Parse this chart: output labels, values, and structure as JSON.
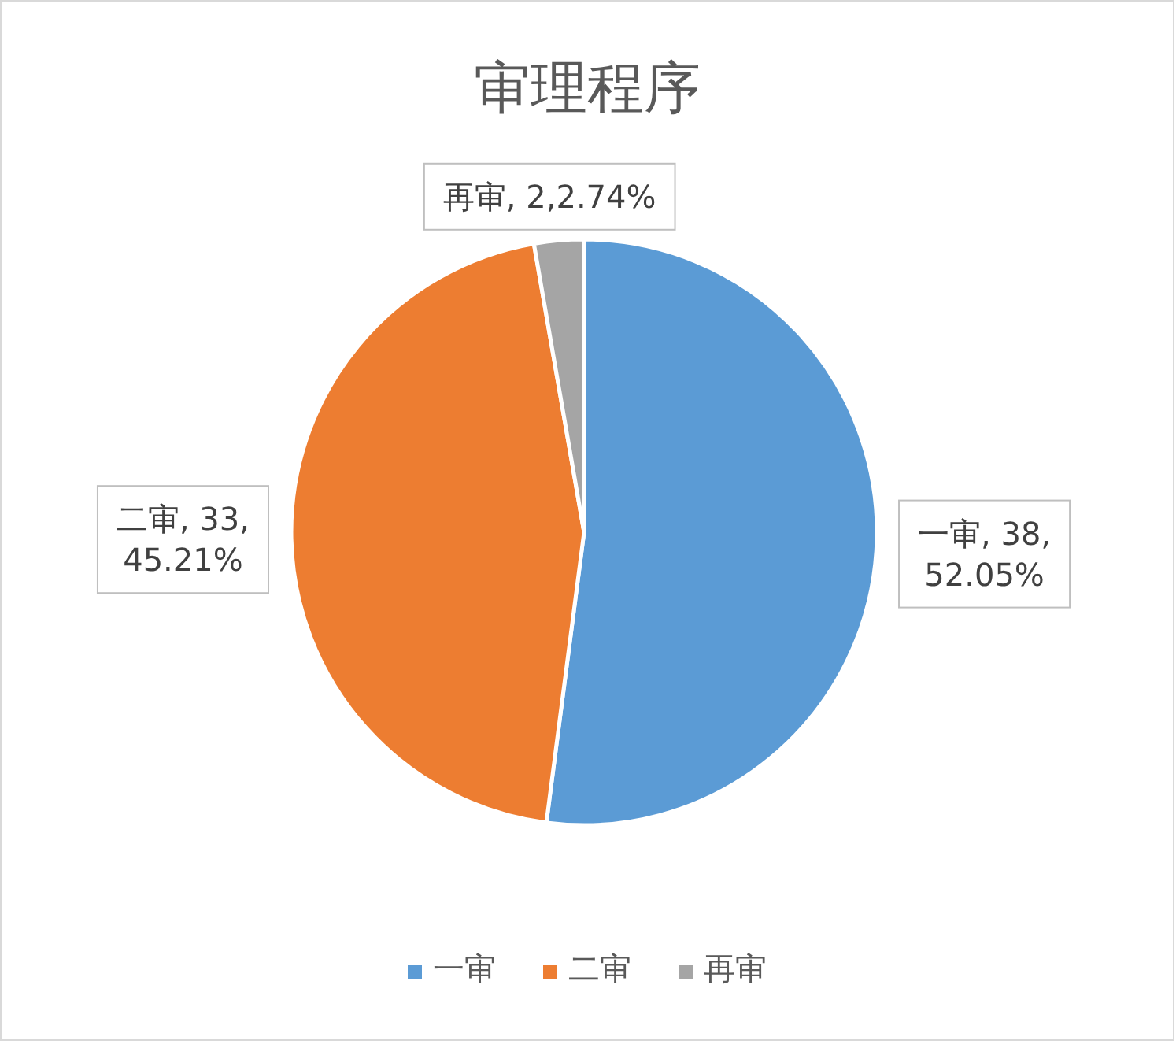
{
  "chart_data": {
    "type": "pie",
    "title": "审理程序",
    "categories": [
      "一审",
      "二审",
      "再审"
    ],
    "values": [
      38,
      33,
      2
    ],
    "colors": [
      "#5b9bd5",
      "#ed7d31",
      "#a5a5a5"
    ],
    "value_labels": [
      "一审, 38, 52.05%",
      "二审, 33, 45.21%",
      "再审, 2,2.74%"
    ],
    "legend": "bottom"
  }
}
